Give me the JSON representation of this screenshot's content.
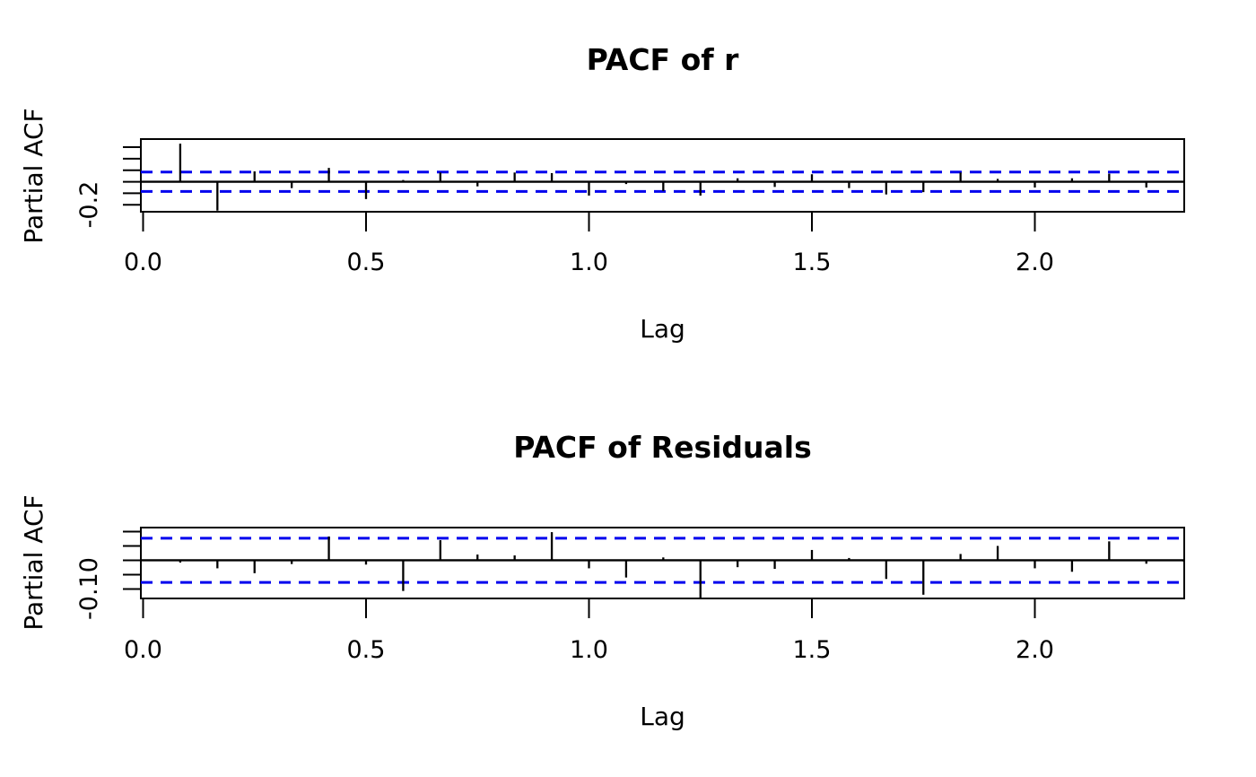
{
  "figure": {
    "background_color": "#ffffff",
    "axis_color": "#000000"
  },
  "chart_data": [
    {
      "type": "bar",
      "title": "PACF of r",
      "xlabel": "Lag",
      "ylabel": "Partial ACF",
      "legend": "none",
      "grid": "off",
      "x_ticks": [
        {
          "value": 0.0,
          "label": "0.0"
        },
        {
          "value": 0.5,
          "label": "0.5"
        },
        {
          "value": 1.0,
          "label": "1.0"
        },
        {
          "value": 1.5,
          "label": "1.5"
        },
        {
          "value": 2.0,
          "label": "2.0"
        }
      ],
      "y_ticks": [
        0.3,
        0.2,
        0.1,
        0.0,
        -0.1,
        -0.2
      ],
      "y_tick_label": "-0.2",
      "y_tick_label_value": -0.2,
      "xlim": [
        -0.005,
        2.335
      ],
      "ylim": [
        -0.26,
        0.37
      ],
      "zero_line": 0,
      "conf_interval": 0.084,
      "conf_color": "#0000ee",
      "bar_color": "#000000",
      "lag_interval": 0.0833333,
      "lags": [
        1,
        2,
        3,
        4,
        5,
        6,
        7,
        8,
        9,
        10,
        11,
        12,
        13,
        14,
        15,
        16,
        17,
        18,
        19,
        20,
        21,
        22,
        23,
        24,
        25,
        26,
        27,
        28
      ],
      "values": [
        0.33,
        -0.25,
        0.09,
        -0.055,
        0.12,
        -0.15,
        0.015,
        0.08,
        -0.04,
        0.08,
        0.075,
        -0.12,
        -0.02,
        -0.08,
        -0.12,
        0.03,
        -0.045,
        0.065,
        -0.055,
        -0.11,
        -0.09,
        0.08,
        0.025,
        -0.05,
        0.03,
        0.07,
        -0.05,
        -0.005
      ]
    },
    {
      "type": "bar",
      "title": "PACF of Residuals",
      "xlabel": "Lag",
      "ylabel": "Partial ACF",
      "legend": "none",
      "grid": "off",
      "x_ticks": [
        {
          "value": 0.0,
          "label": "0.0"
        },
        {
          "value": 0.5,
          "label": "0.5"
        },
        {
          "value": 1.0,
          "label": "1.0"
        },
        {
          "value": 1.5,
          "label": "1.5"
        },
        {
          "value": 2.0,
          "label": "2.0"
        }
      ],
      "y_ticks": [
        0.1,
        0.05,
        0.0,
        -0.05,
        -0.1
      ],
      "y_tick_label": "-0.10",
      "y_tick_label_value": -0.1,
      "xlim": [
        -0.005,
        2.335
      ],
      "ylim": [
        -0.133,
        0.114
      ],
      "zero_line": 0,
      "conf_interval": 0.077,
      "conf_color": "#0000ee",
      "bar_color": "#000000",
      "lag_interval": 0.0833333,
      "lags": [
        1,
        2,
        3,
        4,
        5,
        6,
        7,
        8,
        9,
        10,
        11,
        12,
        13,
        14,
        15,
        16,
        17,
        18,
        19,
        20,
        21,
        22,
        23,
        24,
        25,
        26,
        27,
        28
      ],
      "values": [
        -0.008,
        -0.028,
        -0.045,
        -0.013,
        0.083,
        -0.015,
        -0.107,
        0.07,
        0.02,
        0.017,
        0.098,
        -0.028,
        -0.06,
        0.01,
        -0.13,
        -0.024,
        -0.03,
        0.036,
        0.008,
        -0.065,
        -0.12,
        0.022,
        0.05,
        -0.028,
        -0.04,
        0.066,
        -0.012,
        -0.004
      ]
    }
  ]
}
